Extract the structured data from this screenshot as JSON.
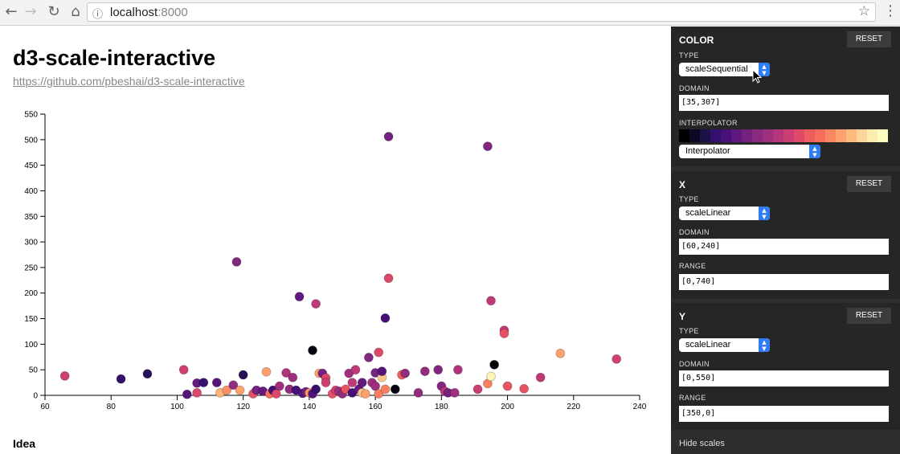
{
  "browser": {
    "url_host": "localhost",
    "url_port": ":8000"
  },
  "page": {
    "title": "d3-scale-interactive",
    "repo_link": "https://github.com/pbeshai/d3-scale-interactive",
    "idea_heading": "Idea"
  },
  "panel": {
    "color": {
      "title": "COLOR",
      "reset_label": "RESET",
      "type_label": "TYPE",
      "type_value": "scaleSequential",
      "domain_label": "DOMAIN",
      "domain_value": "[35,307]",
      "interpolator_label": "INTERPOLATOR",
      "interpolator_value": "Interpolator",
      "ramp_colors": [
        "#000004",
        "#0b0924",
        "#1d1147",
        "#33106b",
        "#4a1079",
        "#5f187f",
        "#73237f",
        "#8a2a7f",
        "#9f2f7f",
        "#b5367a",
        "#cb3e72",
        "#df4a68",
        "#ee5c5d",
        "#f76f5c",
        "#fb8861",
        "#fea16e",
        "#febb80",
        "#fdd49a",
        "#fcecad",
        "#fcfdbf"
      ]
    },
    "x": {
      "title": "X",
      "reset_label": "RESET",
      "type_label": "TYPE",
      "type_value": "scaleLinear",
      "domain_label": "DOMAIN",
      "domain_value": "[60,240]",
      "range_label": "RANGE",
      "range_value": "[0,740]"
    },
    "y": {
      "title": "Y",
      "reset_label": "RESET",
      "type_label": "TYPE",
      "type_value": "scaleLinear",
      "domain_label": "DOMAIN",
      "domain_value": "[0,550]",
      "range_label": "RANGE",
      "range_value": "[350,0]"
    },
    "hide_label": "Hide scales"
  },
  "chart_data": {
    "type": "scatter",
    "xlim": [
      60,
      240
    ],
    "ylim": [
      0,
      550
    ],
    "x_ticks": [
      60,
      80,
      100,
      120,
      140,
      160,
      180,
      200,
      220,
      240
    ],
    "y_ticks": [
      0,
      50,
      100,
      150,
      200,
      250,
      300,
      350,
      400,
      450,
      500,
      550
    ],
    "color_domain": [
      35,
      307
    ],
    "points": [
      {
        "x": 66,
        "y": 38,
        "c": 180
      },
      {
        "x": 83,
        "y": 32,
        "c": 80
      },
      {
        "x": 91,
        "y": 42,
        "c": 70
      },
      {
        "x": 102,
        "y": 50,
        "c": 180
      },
      {
        "x": 103,
        "y": 2,
        "c": 100
      },
      {
        "x": 106,
        "y": 24,
        "c": 110
      },
      {
        "x": 106,
        "y": 5,
        "c": 190
      },
      {
        "x": 108,
        "y": 25,
        "c": 80
      },
      {
        "x": 112,
        "y": 25,
        "c": 100
      },
      {
        "x": 113,
        "y": 5,
        "c": 260
      },
      {
        "x": 115,
        "y": 10,
        "c": 240
      },
      {
        "x": 117,
        "y": 20,
        "c": 140
      },
      {
        "x": 118,
        "y": 261,
        "c": 130
      },
      {
        "x": 119,
        "y": 10,
        "c": 250
      },
      {
        "x": 120,
        "y": 40,
        "c": 70
      },
      {
        "x": 123,
        "y": 3,
        "c": 200
      },
      {
        "x": 124,
        "y": 10,
        "c": 120
      },
      {
        "x": 126,
        "y": 8,
        "c": 110
      },
      {
        "x": 127,
        "y": 46,
        "c": 250
      },
      {
        "x": 128,
        "y": 3,
        "c": 220
      },
      {
        "x": 129,
        "y": 10,
        "c": 90
      },
      {
        "x": 130,
        "y": 3,
        "c": 190
      },
      {
        "x": 131,
        "y": 18,
        "c": 150
      },
      {
        "x": 133,
        "y": 44,
        "c": 160
      },
      {
        "x": 134,
        "y": 12,
        "c": 140
      },
      {
        "x": 135,
        "y": 35,
        "c": 150
      },
      {
        "x": 136,
        "y": 10,
        "c": 90
      },
      {
        "x": 137,
        "y": 193,
        "c": 110
      },
      {
        "x": 138,
        "y": 4,
        "c": 100
      },
      {
        "x": 139,
        "y": 7,
        "c": 120
      },
      {
        "x": 140,
        "y": 5,
        "c": 240
      },
      {
        "x": 141,
        "y": 88,
        "c": 40
      },
      {
        "x": 141,
        "y": 3,
        "c": 100
      },
      {
        "x": 142,
        "y": 179,
        "c": 170
      },
      {
        "x": 142,
        "y": 12,
        "c": 80
      },
      {
        "x": 143,
        "y": 43,
        "c": 250
      },
      {
        "x": 144,
        "y": 43,
        "c": 120
      },
      {
        "x": 145,
        "y": 34,
        "c": 190
      },
      {
        "x": 145,
        "y": 25,
        "c": 180
      },
      {
        "x": 147,
        "y": 3,
        "c": 200
      },
      {
        "x": 148,
        "y": 10,
        "c": 180
      },
      {
        "x": 149,
        "y": 8,
        "c": 150
      },
      {
        "x": 150,
        "y": 3,
        "c": 140
      },
      {
        "x": 151,
        "y": 12,
        "c": 200
      },
      {
        "x": 152,
        "y": 43,
        "c": 150
      },
      {
        "x": 153,
        "y": 5,
        "c": 90
      },
      {
        "x": 153,
        "y": 25,
        "c": 170
      },
      {
        "x": 154,
        "y": 50,
        "c": 170
      },
      {
        "x": 155,
        "y": 12,
        "c": 110
      },
      {
        "x": 156,
        "y": 25,
        "c": 110
      },
      {
        "x": 156,
        "y": 5,
        "c": 270
      },
      {
        "x": 157,
        "y": 3,
        "c": 250
      },
      {
        "x": 158,
        "y": 74,
        "c": 130
      },
      {
        "x": 159,
        "y": 25,
        "c": 150
      },
      {
        "x": 160,
        "y": 44,
        "c": 120
      },
      {
        "x": 160,
        "y": 18,
        "c": 150
      },
      {
        "x": 161,
        "y": 84,
        "c": 190
      },
      {
        "x": 161,
        "y": 3,
        "c": 230
      },
      {
        "x": 162,
        "y": 35,
        "c": 270
      },
      {
        "x": 162,
        "y": 47,
        "c": 100
      },
      {
        "x": 163,
        "y": 151,
        "c": 90
      },
      {
        "x": 164,
        "y": 506,
        "c": 120
      },
      {
        "x": 163,
        "y": 12,
        "c": 230
      },
      {
        "x": 164,
        "y": 229,
        "c": 190
      },
      {
        "x": 166,
        "y": 12,
        "c": 40
      },
      {
        "x": 168,
        "y": 40,
        "c": 210
      },
      {
        "x": 169,
        "y": 43,
        "c": 140
      },
      {
        "x": 173,
        "y": 5,
        "c": 140
      },
      {
        "x": 175,
        "y": 47,
        "c": 140
      },
      {
        "x": 179,
        "y": 50,
        "c": 130
      },
      {
        "x": 180,
        "y": 18,
        "c": 130
      },
      {
        "x": 181,
        "y": 8,
        "c": 170
      },
      {
        "x": 182,
        "y": 5,
        "c": 120
      },
      {
        "x": 184,
        "y": 5,
        "c": 150
      },
      {
        "x": 185,
        "y": 50,
        "c": 160
      },
      {
        "x": 191,
        "y": 12,
        "c": 180
      },
      {
        "x": 194,
        "y": 487,
        "c": 130
      },
      {
        "x": 194,
        "y": 23,
        "c": 230
      },
      {
        "x": 195,
        "y": 37,
        "c": 300
      },
      {
        "x": 195,
        "y": 185,
        "c": 170
      },
      {
        "x": 196,
        "y": 60,
        "c": 35
      },
      {
        "x": 199,
        "y": 127,
        "c": 170
      },
      {
        "x": 199,
        "y": 121,
        "c": 200
      },
      {
        "x": 200,
        "y": 18,
        "c": 200
      },
      {
        "x": 205,
        "y": 13,
        "c": 200
      },
      {
        "x": 210,
        "y": 35,
        "c": 170
      },
      {
        "x": 216,
        "y": 82,
        "c": 250
      },
      {
        "x": 233,
        "y": 71,
        "c": 180
      }
    ]
  }
}
